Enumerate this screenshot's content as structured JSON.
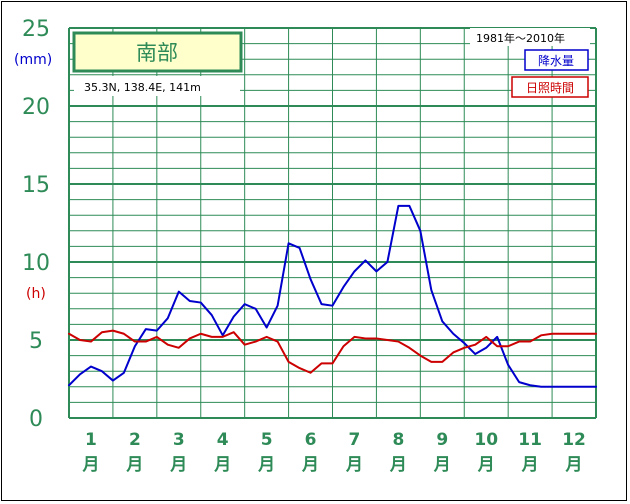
{
  "colors": {
    "grid": "#2e8b57",
    "precip": "#0000cc",
    "sunshine": "#cc0000",
    "title_bg": "#ffffcc",
    "label": "#2e8b57"
  },
  "station": {
    "name": "南部",
    "coords": "35.3N,  138.4E,  141m",
    "period": "1981年～2010年"
  },
  "legend": {
    "precip": "降水量",
    "sunshine": "日照時間"
  },
  "units": {
    "precip": "(mm)",
    "sunshine": "(h)"
  },
  "chart_data": {
    "type": "line",
    "ylim": [
      0,
      25
    ],
    "yticks": [
      "0",
      "5",
      "10",
      "15",
      "20",
      "25"
    ],
    "categories": [
      "1月",
      "2月",
      "3月",
      "4月",
      "5月",
      "6月",
      "7月",
      "8月",
      "9月",
      "10月",
      "11月",
      "12月"
    ],
    "month_numbers": [
      "1",
      "2",
      "3",
      "4",
      "5",
      "6",
      "7",
      "8",
      "9",
      "10",
      "11",
      "12"
    ],
    "month_suffix": "月",
    "x": [
      0.0,
      0.25,
      0.5,
      0.75,
      1.0,
      1.25,
      1.5,
      1.75,
      2.0,
      2.25,
      2.5,
      2.75,
      3.0,
      3.25,
      3.5,
      3.75,
      4.0,
      4.25,
      4.5,
      4.75,
      5.0,
      5.25,
      5.5,
      5.75,
      6.0,
      6.25,
      6.5,
      6.75,
      7.0,
      7.25,
      7.5,
      7.75,
      8.0,
      8.25,
      8.5,
      8.75,
      9.0,
      9.25,
      9.5,
      9.75,
      10.0,
      10.25,
      10.5,
      10.75,
      11.0,
      11.25,
      11.5,
      11.75,
      12.0
    ],
    "series": [
      {
        "name": "降水量",
        "values": [
          2.1,
          2.8,
          3.3,
          3.0,
          2.4,
          2.9,
          4.6,
          5.7,
          5.6,
          6.4,
          8.1,
          7.5,
          7.4,
          6.6,
          5.3,
          6.5,
          7.3,
          7.0,
          5.8,
          7.2,
          11.2,
          10.9,
          8.9,
          7.3,
          7.2,
          8.4,
          9.4,
          10.1,
          9.4,
          10.0,
          13.6,
          13.6,
          12.0,
          8.2,
          6.2,
          5.4,
          4.8,
          4.1,
          4.5,
          5.2,
          3.4,
          2.3,
          2.1,
          2.0,
          2.0,
          2.0,
          2.0,
          2.0,
          2.0
        ]
      },
      {
        "name": "日照時間",
        "values": [
          5.4,
          5.0,
          4.9,
          5.5,
          5.6,
          5.4,
          4.9,
          4.9,
          5.2,
          4.7,
          4.5,
          5.1,
          5.4,
          5.2,
          5.2,
          5.5,
          4.7,
          4.9,
          5.2,
          4.9,
          3.6,
          3.2,
          2.9,
          3.5,
          3.5,
          4.6,
          5.2,
          5.1,
          5.1,
          5.0,
          4.9,
          4.5,
          4.0,
          3.6,
          3.6,
          4.2,
          4.5,
          4.7,
          5.2,
          4.6,
          4.6,
          4.9,
          4.9,
          5.3,
          5.4,
          5.4,
          5.4,
          5.4,
          5.4
        ]
      }
    ]
  }
}
